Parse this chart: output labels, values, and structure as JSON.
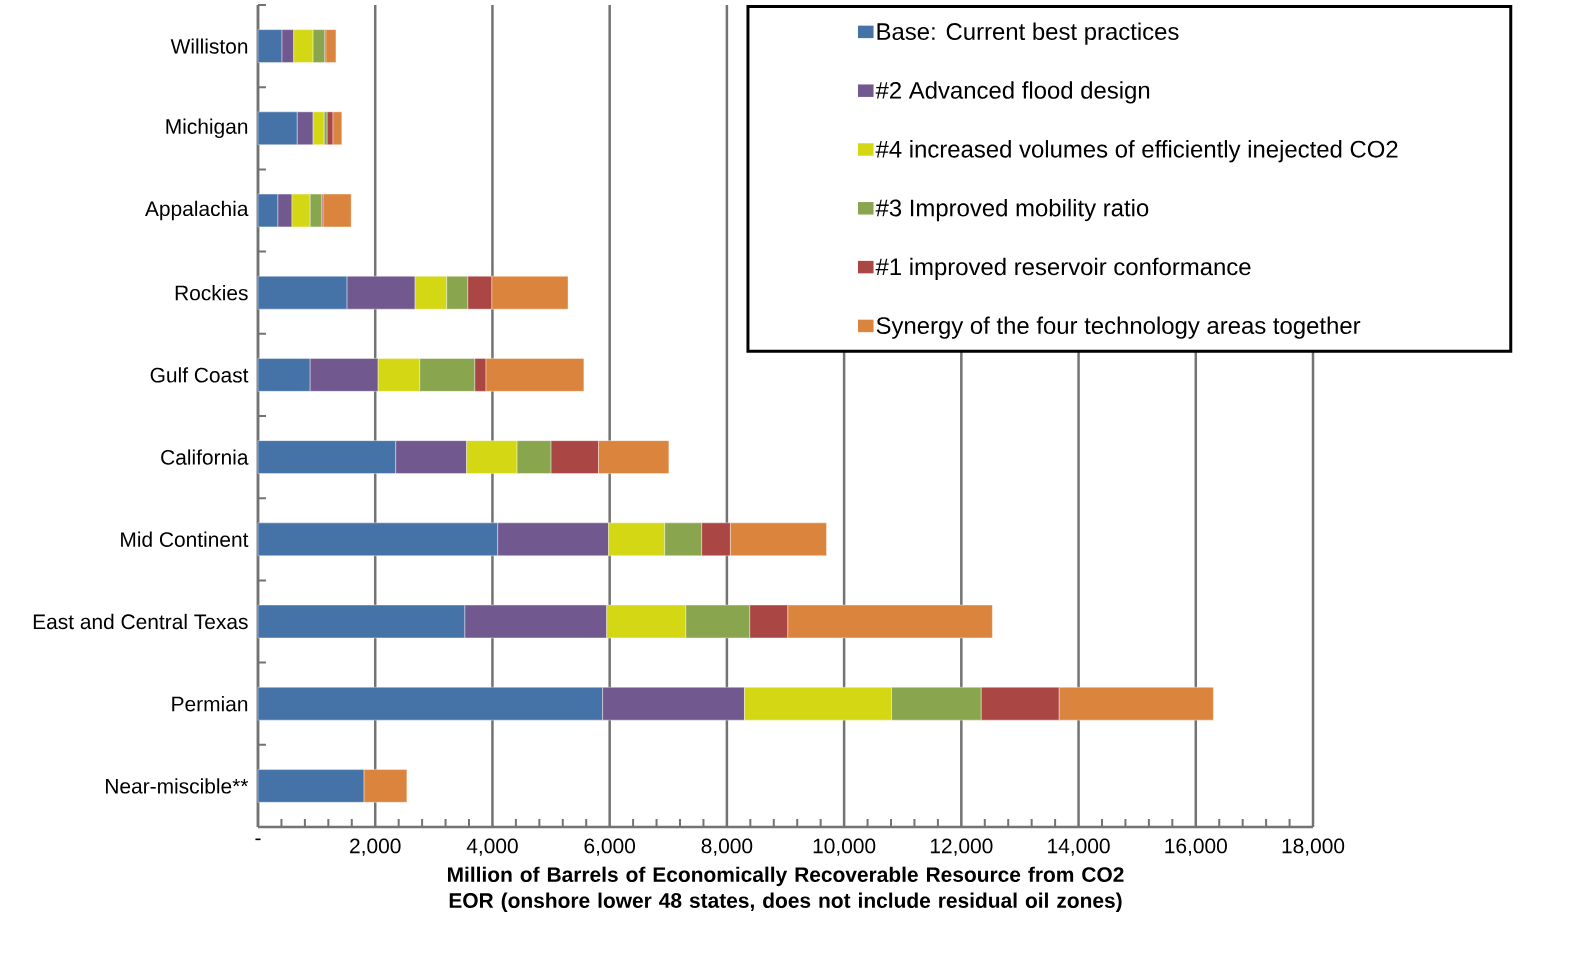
{
  "chart_data": {
    "type": "bar",
    "orientation": "horizontal",
    "stacked": true,
    "xlabel": "Million of Barrels of Economically Recoverable Resource from CO2 EOR (onshore lower 48 states, does not include residual oil zones)",
    "categories": [
      "Williston",
      "Michigan",
      "Appalachia",
      "Rockies",
      "Gulf Coast",
      "California",
      "Mid Continent",
      "East and Central Texas",
      "Permian",
      "Near-miscible**"
    ],
    "series": [
      {
        "name": "Base: Current best practices",
        "color": "#4572a7",
        "values": [
          410,
          670,
          340,
          1520,
          890,
          2350,
          4090,
          3530,
          5880,
          1810
        ]
      },
      {
        "name": "#2 Advanced flood design",
        "color": "#71588f",
        "values": [
          200,
          270,
          240,
          1160,
          1160,
          1210,
          1890,
          2420,
          2420,
          null
        ]
      },
      {
        "name": "#4 increased volumes of efficiently inejected CO2",
        "color": "#d4d713",
        "values": [
          330,
          190,
          310,
          540,
          710,
          860,
          960,
          1350,
          2510,
          null
        ]
      },
      {
        "name": "#3 Improved mobility ratio",
        "color": "#89a54e",
        "values": [
          200,
          50,
          200,
          360,
          940,
          580,
          630,
          1090,
          1530,
          null
        ]
      },
      {
        "name": "#1 improved reservoir conformance",
        "color": "#aa4643",
        "values": [
          20,
          100,
          20,
          410,
          190,
          810,
          490,
          650,
          1330,
          null
        ]
      },
      {
        "name": "Synergy of the four technology areas together",
        "color": "#db843d",
        "values": [
          170,
          150,
          480,
          1300,
          1670,
          1200,
          1640,
          3490,
          2630,
          730
        ]
      }
    ],
    "xlim": [
      0,
      18000
    ],
    "xticks": [
      {
        "value": 0,
        "label": "-"
      },
      {
        "value": 2000,
        "label": "2,000"
      },
      {
        "value": 4000,
        "label": "4,000"
      },
      {
        "value": 6000,
        "label": "6,000"
      },
      {
        "value": 8000,
        "label": "8,000"
      },
      {
        "value": 10000,
        "label": "10,000"
      },
      {
        "value": 12000,
        "label": "12,000"
      },
      {
        "value": 14000,
        "label": "14,000"
      },
      {
        "value": 16000,
        "label": "16,000"
      },
      {
        "value": 18000,
        "label": "18,000"
      }
    ],
    "grid": "x",
    "legend": "top right"
  }
}
